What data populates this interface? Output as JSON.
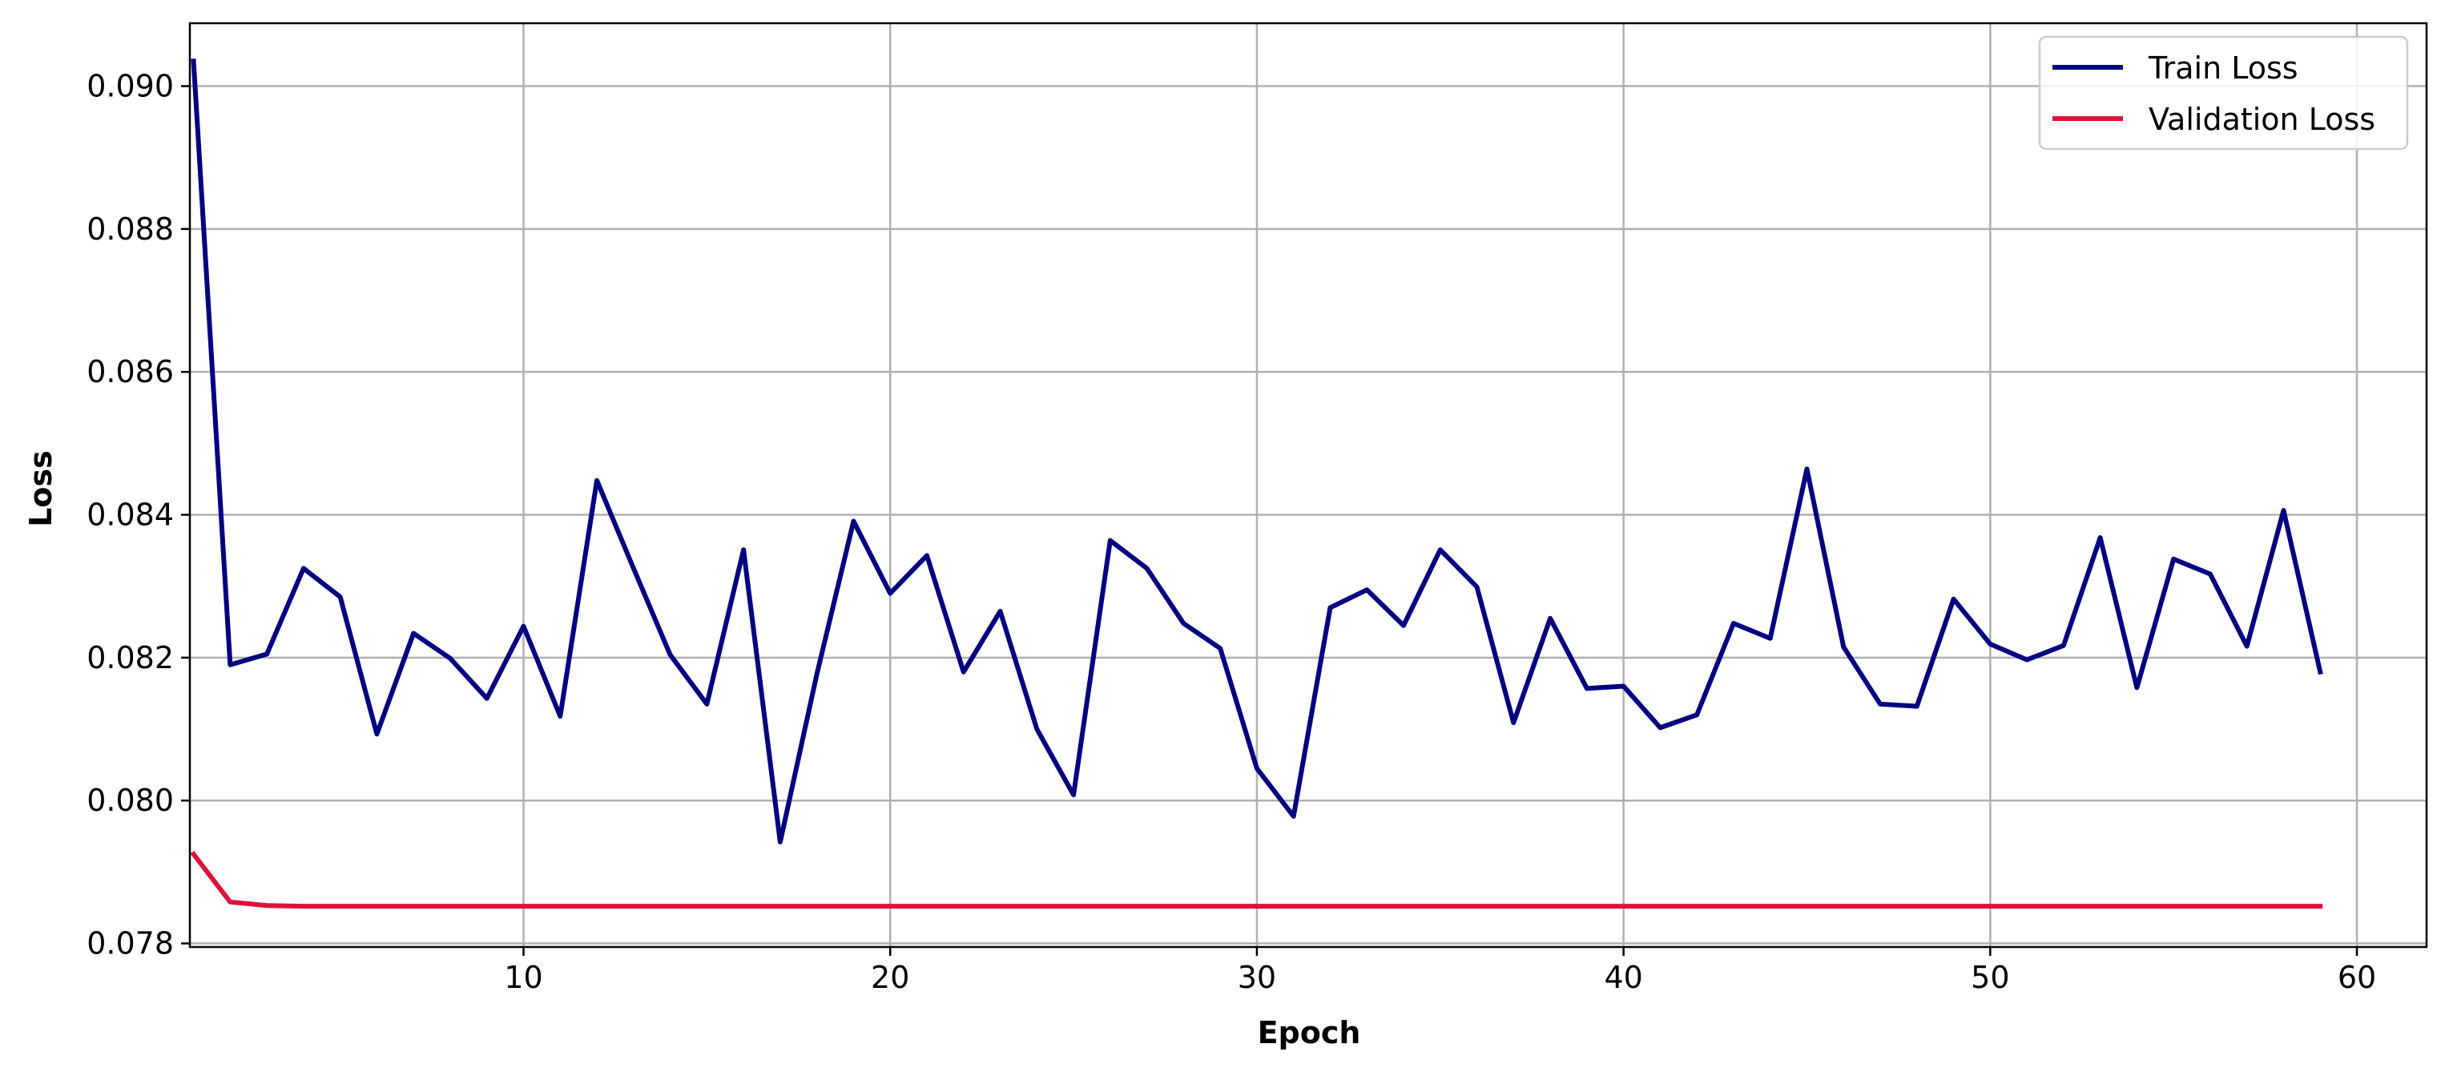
{
  "chart_data": {
    "type": "line",
    "xlabel": "Epoch",
    "ylabel": "Loss",
    "xlim": [
      0.9,
      61.9
    ],
    "ylim": [
      0.07795,
      0.09088
    ],
    "xticks": [
      10,
      20,
      30,
      40,
      50,
      60
    ],
    "yticks": [
      0.078,
      0.08,
      0.082,
      0.084,
      0.086,
      0.088,
      0.09
    ],
    "ytick_format": 3,
    "grid": true,
    "legend_position": "top-right",
    "colors": {
      "train": "#000080",
      "validation": "#dc143c",
      "grid": "#b0b0b0"
    },
    "x": [
      1,
      2,
      3,
      4,
      5,
      6,
      7,
      8,
      9,
      10,
      11,
      12,
      13,
      14,
      15,
      16,
      17,
      18,
      19,
      20,
      21,
      22,
      23,
      24,
      25,
      26,
      27,
      28,
      29,
      30,
      31,
      32,
      33,
      34,
      35,
      36,
      37,
      38,
      39,
      40,
      41,
      42,
      43,
      44,
      45,
      46,
      47,
      48,
      49,
      50,
      51,
      52,
      53,
      54,
      55,
      56,
      57,
      58,
      59
    ],
    "series": [
      {
        "name": "Train Loss",
        "values": [
          0.09035,
          0.0819,
          0.08205,
          0.08325,
          0.08285,
          0.08093,
          0.08234,
          0.08199,
          0.08143,
          0.08244,
          0.08118,
          0.08448,
          0.08325,
          0.08204,
          0.08135,
          0.08351,
          0.07942,
          0.08177,
          0.08391,
          0.0829,
          0.08343,
          0.0818,
          0.08265,
          0.081,
          0.08008,
          0.08364,
          0.08325,
          0.08248,
          0.08213,
          0.08045,
          0.07978,
          0.0827,
          0.08295,
          0.08245,
          0.08351,
          0.08299,
          0.08109,
          0.08255,
          0.08157,
          0.0816,
          0.08102,
          0.0812,
          0.08248,
          0.08227,
          0.08464,
          0.08215,
          0.08135,
          0.08132,
          0.08282,
          0.08219,
          0.08197,
          0.08217,
          0.08368,
          0.08158,
          0.08338,
          0.08317,
          0.08216,
          0.08406,
          0.0818
        ]
      },
      {
        "name": "Validation Loss",
        "values": [
          0.07925,
          0.07858,
          0.07853,
          0.07852,
          0.07852,
          0.07852,
          0.07852,
          0.07852,
          0.07852,
          0.07852,
          0.07852,
          0.07852,
          0.07852,
          0.07852,
          0.07852,
          0.07852,
          0.07852,
          0.07852,
          0.07852,
          0.07852,
          0.07852,
          0.07852,
          0.07852,
          0.07852,
          0.07852,
          0.07852,
          0.07852,
          0.07852,
          0.07852,
          0.07852,
          0.07852,
          0.07852,
          0.07852,
          0.07852,
          0.07852,
          0.07852,
          0.07852,
          0.07852,
          0.07852,
          0.07852,
          0.07852,
          0.07852,
          0.07852,
          0.07852,
          0.07852,
          0.07852,
          0.07852,
          0.07852,
          0.07852,
          0.07852,
          0.07852,
          0.07852,
          0.07852,
          0.07852,
          0.07852,
          0.07852,
          0.07852,
          0.07852,
          0.07852
        ]
      }
    ]
  }
}
